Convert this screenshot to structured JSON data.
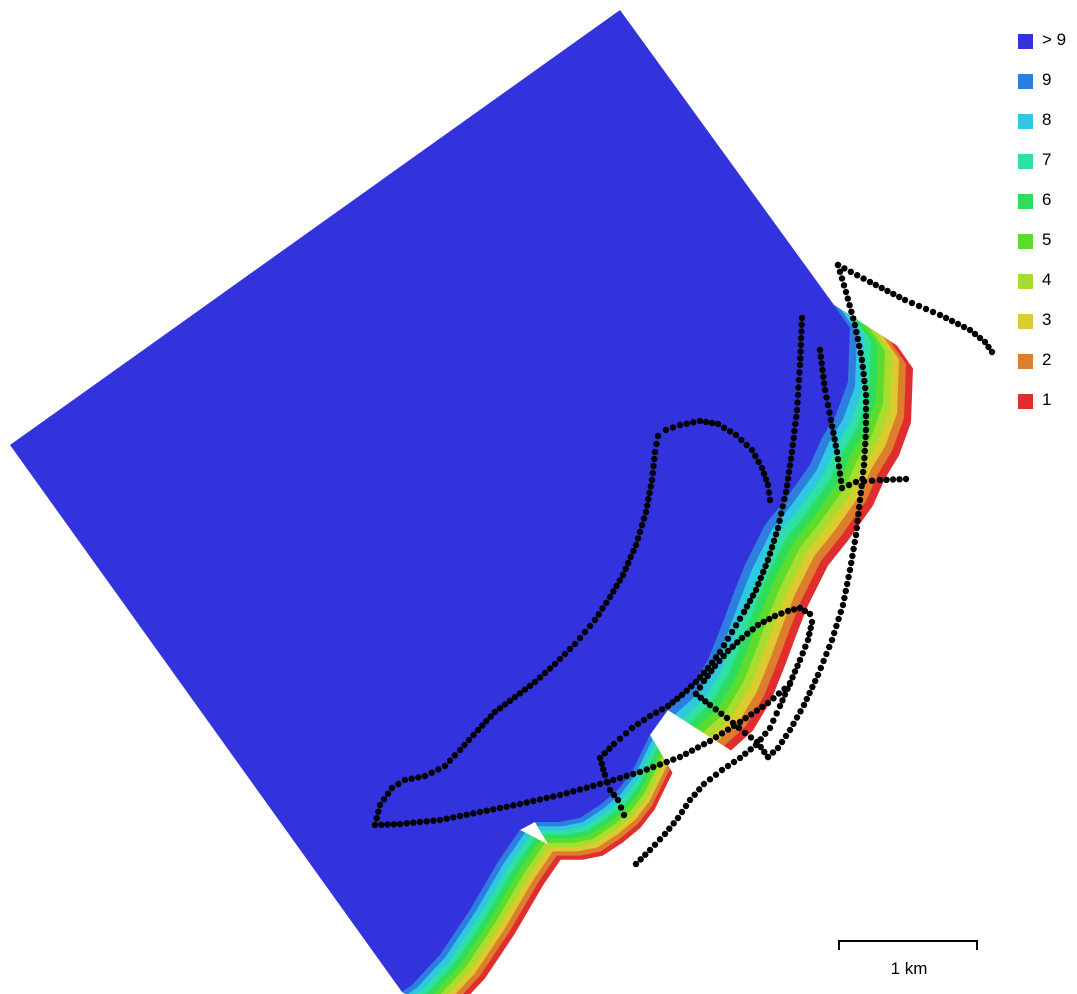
{
  "map": {
    "base_color": "#3333dd",
    "track_color": "#000000"
  },
  "legend": {
    "items": [
      {
        "label": "> 9",
        "color": "#3333dd"
      },
      {
        "label": "9",
        "color": "#2e7ee0"
      },
      {
        "label": "8",
        "color": "#2ec8e0"
      },
      {
        "label": "7",
        "color": "#2ee0a6"
      },
      {
        "label": "6",
        "color": "#2edd5c"
      },
      {
        "label": "5",
        "color": "#5add2e"
      },
      {
        "label": "4",
        "color": "#a6dd2e"
      },
      {
        "label": "3",
        "color": "#dccb2e"
      },
      {
        "label": "2",
        "color": "#dd7e2e"
      },
      {
        "label": "1",
        "color": "#e02e2e"
      }
    ]
  },
  "scalebar": {
    "label": "1 km"
  }
}
